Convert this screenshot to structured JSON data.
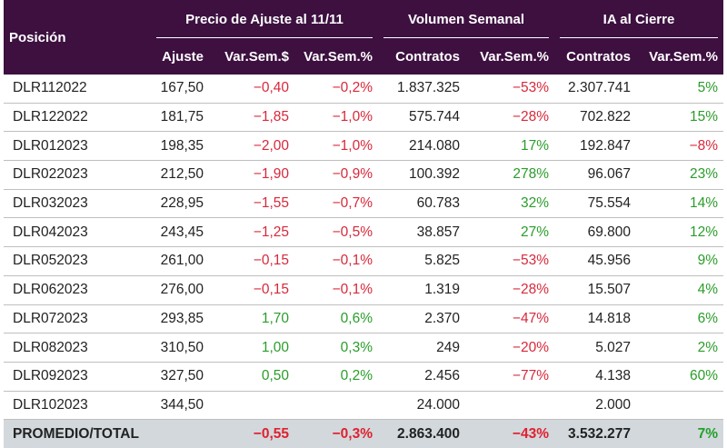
{
  "header": {
    "position_label": "Posición",
    "group_price": "Precio de Ajuste al 11/11",
    "group_volume": "Volumen Semanal",
    "group_oi": "IA al Cierre",
    "col_ajuste": "Ajuste",
    "col_var_abs": "Var.Sem.$",
    "col_var_pct": "Var.Sem.%",
    "col_contratos": "Contratos",
    "col_vol_var": "Var.Sem.%",
    "col_oi_contratos": "Contratos",
    "col_oi_var": "Var.Sem.%"
  },
  "colors": {
    "header_bg": "#3d1040",
    "negative": "#d8283a",
    "positive": "#2a9d2a",
    "total_bg": "#d2d8dc"
  },
  "rows": [
    {
      "pos": "DLR112022",
      "ajuste": "167,50",
      "var_abs": "-0,40",
      "var_pct": "-0,2%",
      "vol": "1.837.325",
      "vol_var": "-53%",
      "oi": "2.307.741",
      "oi_var": "5%"
    },
    {
      "pos": "DLR122022",
      "ajuste": "181,75",
      "var_abs": "-1,85",
      "var_pct": "-1,0%",
      "vol": "575.744",
      "vol_var": "-28%",
      "oi": "702.822",
      "oi_var": "15%"
    },
    {
      "pos": "DLR012023",
      "ajuste": "198,35",
      "var_abs": "-2,00",
      "var_pct": "-1,0%",
      "vol": "214.080",
      "vol_var": "17%",
      "oi": "192.847",
      "oi_var": "-8%"
    },
    {
      "pos": "DLR022023",
      "ajuste": "212,50",
      "var_abs": "-1,90",
      "var_pct": "-0,9%",
      "vol": "100.392",
      "vol_var": "278%",
      "oi": "96.067",
      "oi_var": "23%"
    },
    {
      "pos": "DLR032023",
      "ajuste": "228,95",
      "var_abs": "-1,55",
      "var_pct": "-0,7%",
      "vol": "60.783",
      "vol_var": "32%",
      "oi": "75.554",
      "oi_var": "14%"
    },
    {
      "pos": "DLR042023",
      "ajuste": "243,45",
      "var_abs": "-1,25",
      "var_pct": "-0,5%",
      "vol": "38.857",
      "vol_var": "27%",
      "oi": "69.800",
      "oi_var": "12%"
    },
    {
      "pos": "DLR052023",
      "ajuste": "261,00",
      "var_abs": "-0,15",
      "var_pct": "-0,1%",
      "vol": "5.825",
      "vol_var": "-53%",
      "oi": "45.956",
      "oi_var": "9%"
    },
    {
      "pos": "DLR062023",
      "ajuste": "276,00",
      "var_abs": "-0,15",
      "var_pct": "-0,1%",
      "vol": "1.319",
      "vol_var": "-28%",
      "oi": "15.507",
      "oi_var": "4%"
    },
    {
      "pos": "DLR072023",
      "ajuste": "293,85",
      "var_abs": "1,70",
      "var_pct": "0,6%",
      "vol": "2.370",
      "vol_var": "-47%",
      "oi": "14.818",
      "oi_var": "6%"
    },
    {
      "pos": "DLR082023",
      "ajuste": "310,50",
      "var_abs": "1,00",
      "var_pct": "0,3%",
      "vol": "249",
      "vol_var": "-20%",
      "oi": "5.027",
      "oi_var": "2%"
    },
    {
      "pos": "DLR092023",
      "ajuste": "327,50",
      "var_abs": "0,50",
      "var_pct": "0,2%",
      "vol": "2.456",
      "vol_var": "-77%",
      "oi": "4.138",
      "oi_var": "60%"
    },
    {
      "pos": "DLR102023",
      "ajuste": "344,50",
      "var_abs": "",
      "var_pct": "",
      "vol": "24.000",
      "vol_var": "",
      "oi": "2.000",
      "oi_var": ""
    }
  ],
  "total": {
    "pos": "PROMEDIO/TOTAL",
    "ajuste": "",
    "var_abs": "-0,55",
    "var_pct": "-0,3%",
    "vol": "2.863.400",
    "vol_var": "-43%",
    "oi": "3.532.277",
    "oi_var": "7%"
  }
}
